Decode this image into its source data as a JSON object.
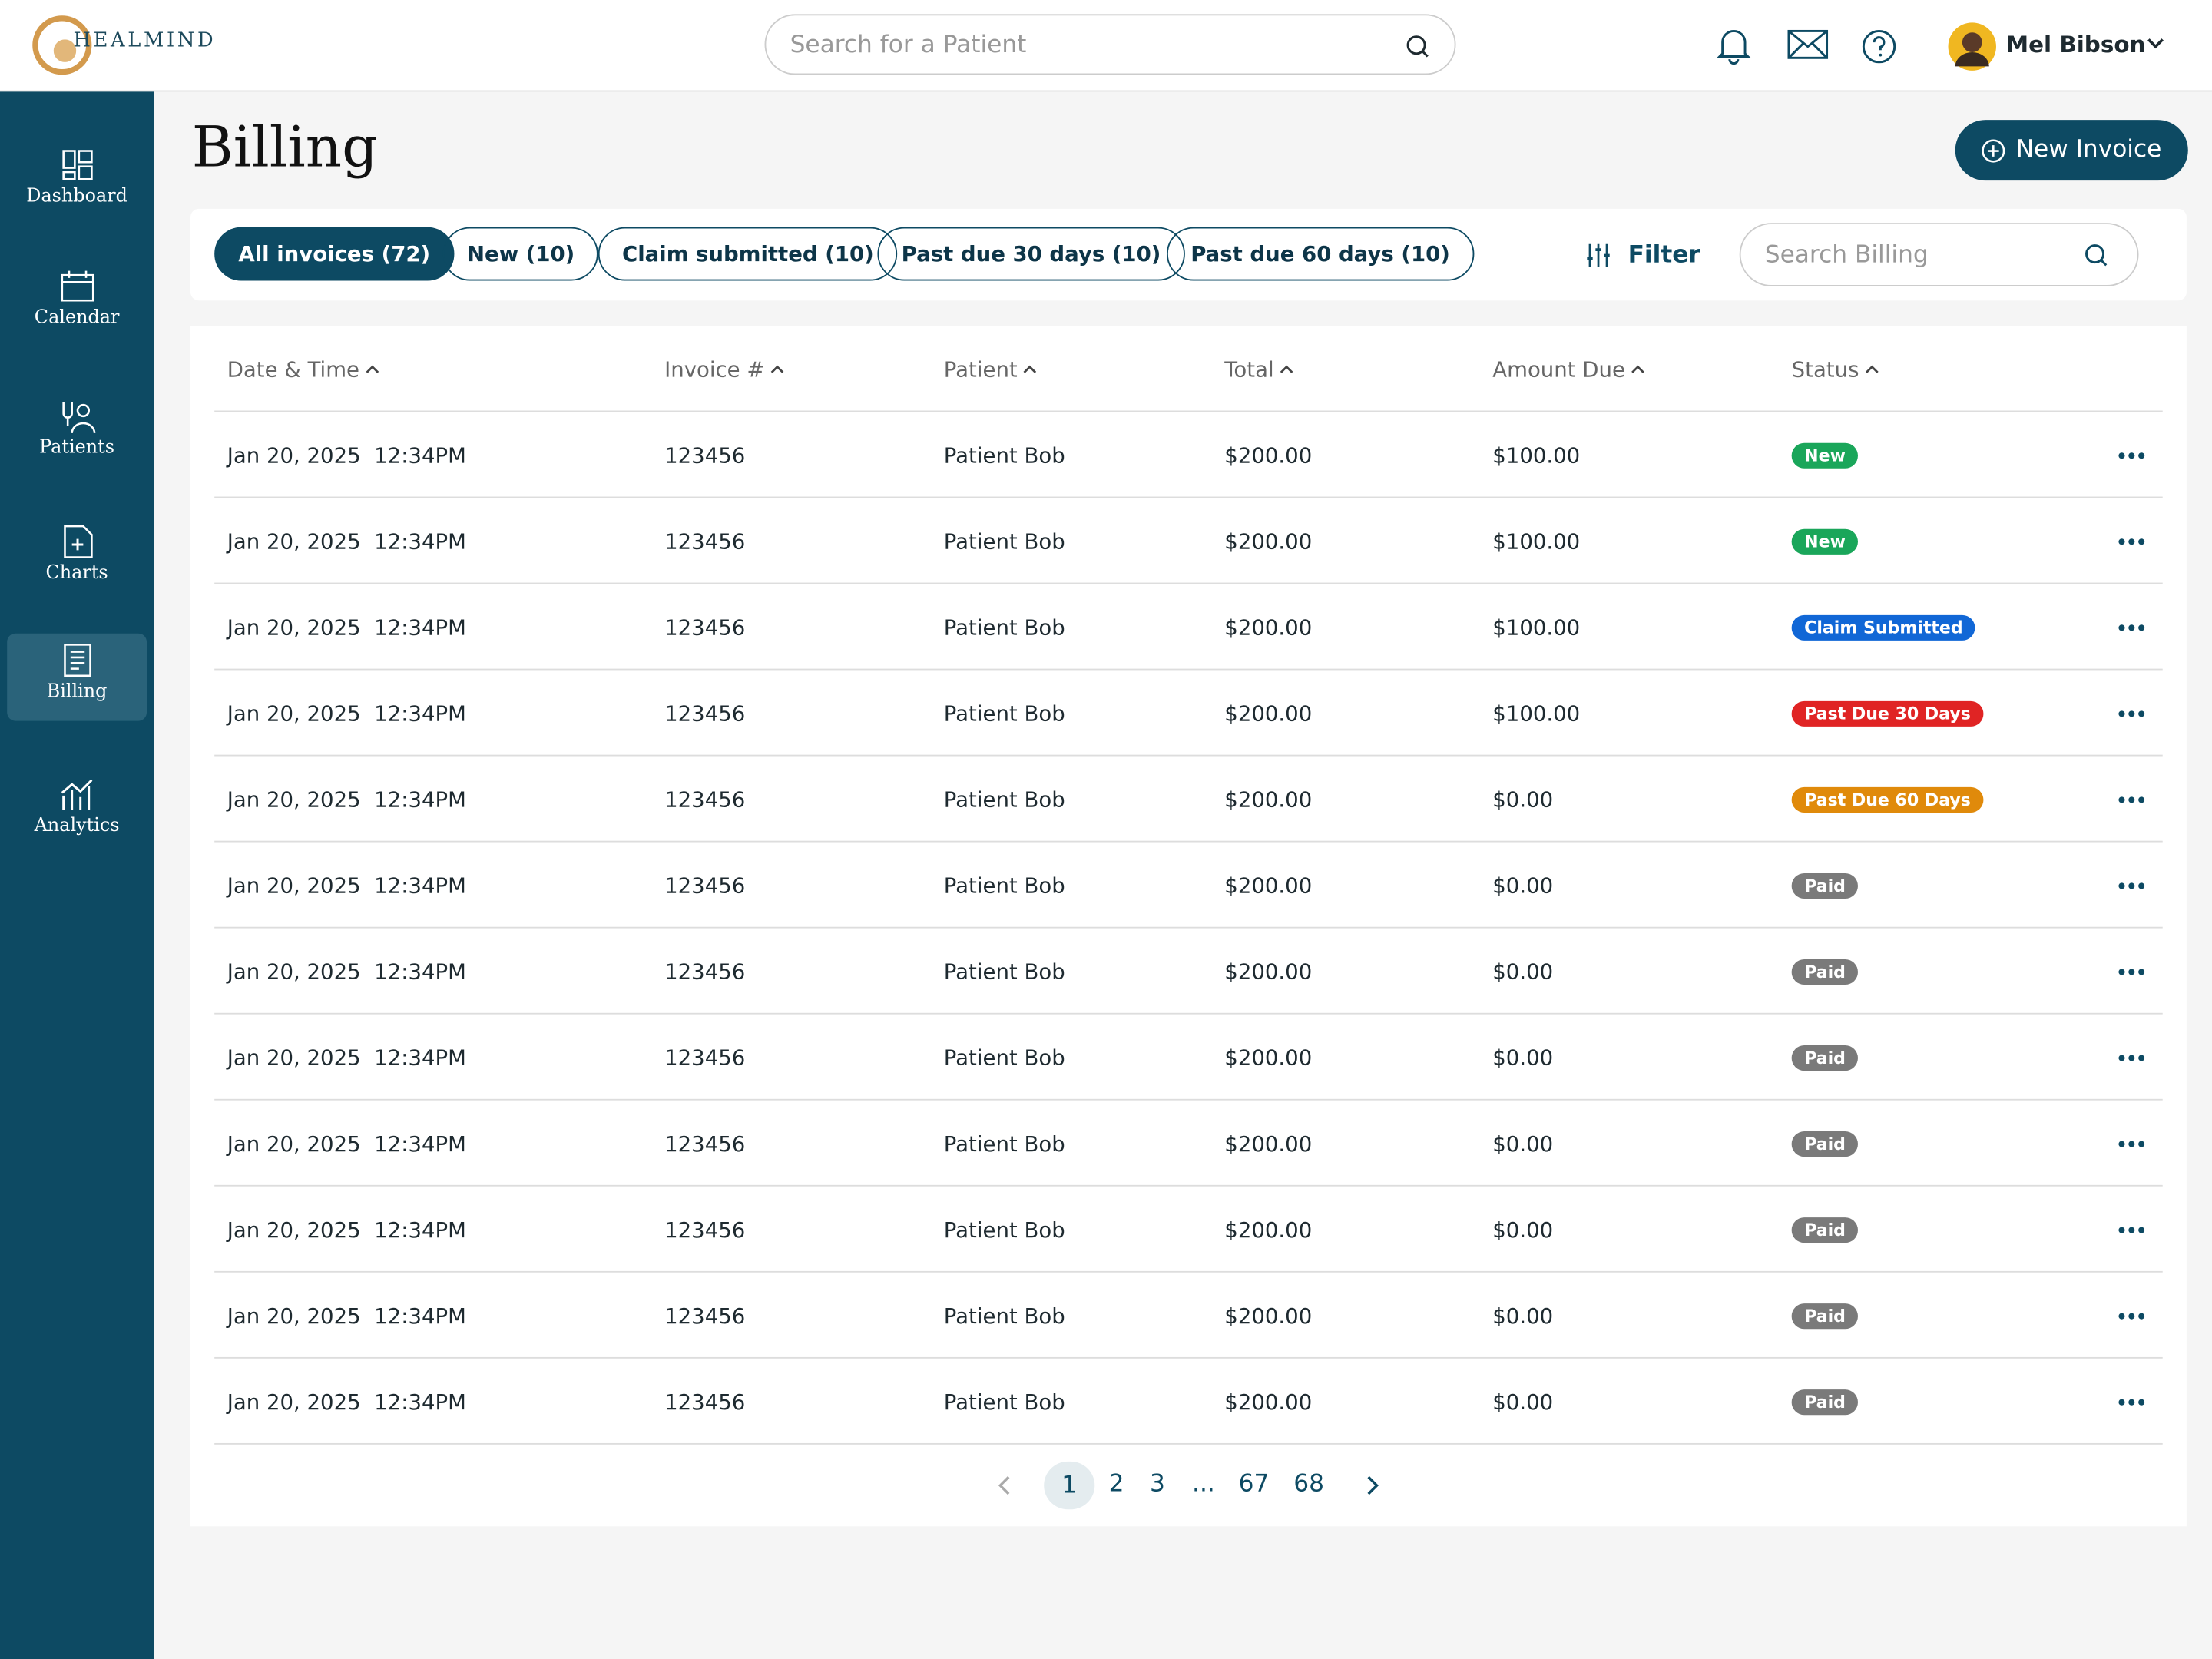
{
  "header": {
    "brand": "HEALMIND",
    "search_placeholder": "Search for a Patient",
    "user_name": "Mel Bibson"
  },
  "sidebar": {
    "items": [
      "Dashboard",
      "Calendar",
      "Patients",
      "Charts",
      "Billing",
      "Analytics"
    ],
    "active": 4
  },
  "page": {
    "title": "Billing",
    "new_invoice_button": "New Invoice"
  },
  "tabs": {
    "items": [
      "All invoices (72)",
      "New (10)",
      "Claim submitted (10)",
      "Past due 30 days (10)",
      "Past due 60 days (10)"
    ],
    "active": 0,
    "filter_label": "Filter",
    "search_placeholder": "Search Billing"
  },
  "table": {
    "columns": [
      "Date & Time",
      "Invoice #",
      "Patient",
      "Total",
      "Amount Due",
      "Status"
    ],
    "rows": [
      {
        "date": "Jan 20, 2025  12:34PM",
        "invoice": "123456",
        "patient": "Patient Bob",
        "total": "$200.00",
        "amount_due": "$100.00",
        "status": "New",
        "status_color": "#1aa65a"
      },
      {
        "date": "Jan 20, 2025  12:34PM",
        "invoice": "123456",
        "patient": "Patient Bob",
        "total": "$200.00",
        "amount_due": "$100.00",
        "status": "New",
        "status_color": "#1aa65a"
      },
      {
        "date": "Jan 20, 2025  12:34PM",
        "invoice": "123456",
        "patient": "Patient Bob",
        "total": "$200.00",
        "amount_due": "$100.00",
        "status": "Claim Submitted",
        "status_color": "#1167d6"
      },
      {
        "date": "Jan 20, 2025  12:34PM",
        "invoice": "123456",
        "patient": "Patient Bob",
        "total": "$200.00",
        "amount_due": "$100.00",
        "status": "Past Due 30 Days",
        "status_color": "#e02424"
      },
      {
        "date": "Jan 20, 2025  12:34PM",
        "invoice": "123456",
        "patient": "Patient Bob",
        "total": "$200.00",
        "amount_due": "$0.00",
        "status": "Past Due 60 Days",
        "status_color": "#e08a0b"
      },
      {
        "date": "Jan 20, 2025  12:34PM",
        "invoice": "123456",
        "patient": "Patient Bob",
        "total": "$200.00",
        "amount_due": "$0.00",
        "status": "Paid",
        "status_color": "#7a7a7a"
      },
      {
        "date": "Jan 20, 2025  12:34PM",
        "invoice": "123456",
        "patient": "Patient Bob",
        "total": "$200.00",
        "amount_due": "$0.00",
        "status": "Paid",
        "status_color": "#7a7a7a"
      },
      {
        "date": "Jan 20, 2025  12:34PM",
        "invoice": "123456",
        "patient": "Patient Bob",
        "total": "$200.00",
        "amount_due": "$0.00",
        "status": "Paid",
        "status_color": "#7a7a7a"
      },
      {
        "date": "Jan 20, 2025  12:34PM",
        "invoice": "123456",
        "patient": "Patient Bob",
        "total": "$200.00",
        "amount_due": "$0.00",
        "status": "Paid",
        "status_color": "#7a7a7a"
      },
      {
        "date": "Jan 20, 2025  12:34PM",
        "invoice": "123456",
        "patient": "Patient Bob",
        "total": "$200.00",
        "amount_due": "$0.00",
        "status": "Paid",
        "status_color": "#7a7a7a"
      },
      {
        "date": "Jan 20, 2025  12:34PM",
        "invoice": "123456",
        "patient": "Patient Bob",
        "total": "$200.00",
        "amount_due": "$0.00",
        "status": "Paid",
        "status_color": "#7a7a7a"
      },
      {
        "date": "Jan 20, 2025  12:34PM",
        "invoice": "123456",
        "patient": "Patient Bob",
        "total": "$200.00",
        "amount_due": "$0.00",
        "status": "Paid",
        "status_color": "#7a7a7a"
      }
    ]
  },
  "pagination": {
    "pages": [
      "1",
      "2",
      "3",
      "...",
      "67",
      "68"
    ],
    "current": 0
  }
}
